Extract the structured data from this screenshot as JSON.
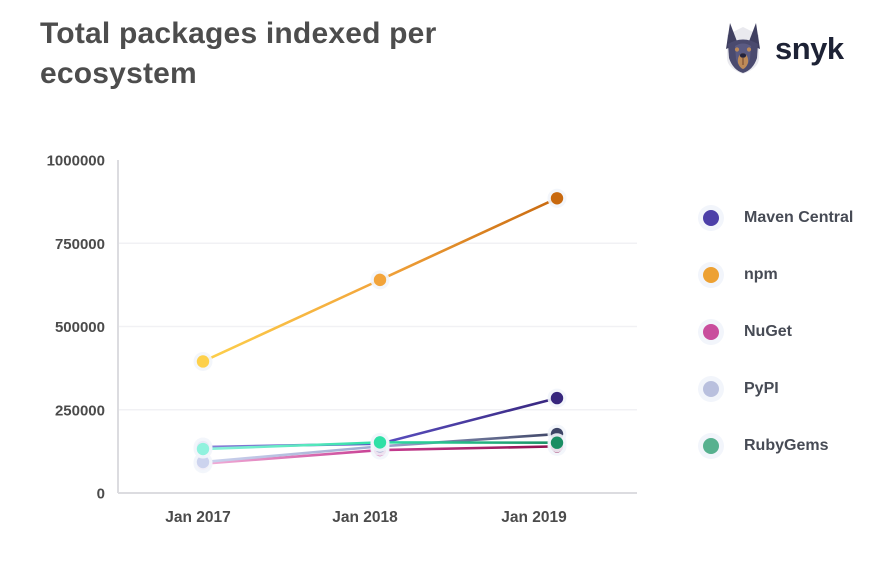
{
  "header": {
    "title": "Total packages indexed per ecosystem"
  },
  "logo": {
    "brand": "snyk",
    "icon": "snyk-doberman-logo"
  },
  "chart_data": {
    "type": "line",
    "title": "Total packages indexed per ecosystem",
    "x": [
      "Jan 2017",
      "Jan 2018",
      "Jan 2019"
    ],
    "ylim": [
      0,
      1000000
    ],
    "yticks": [
      0,
      250000,
      500000,
      750000,
      1000000
    ],
    "ytick_labels": [
      "0",
      "250000",
      "500000",
      "750000",
      "1000000"
    ],
    "grid": true,
    "legend_position": "right",
    "series": [
      {
        "name": "Maven Central",
        "values": [
          138000,
          148000,
          285000
        ],
        "legend_color": "#4c3fa8",
        "gradient": [
          "#8a82d8",
          "#5a4fc0",
          "#37267d"
        ]
      },
      {
        "name": "npm",
        "values": [
          395000,
          640000,
          885000
        ],
        "legend_color": "#eda133",
        "gradient": [
          "#fdd04b",
          "#f2a43b",
          "#c8690f"
        ]
      },
      {
        "name": "NuGet",
        "values": [
          88000,
          129000,
          140000
        ],
        "legend_color": "#c94d9d",
        "gradient": [
          "#f2b1da",
          "#c73d92",
          "#8e0f4c"
        ]
      },
      {
        "name": "PyPI",
        "values": [
          93000,
          140000,
          177000
        ],
        "legend_color": "#b9c0de",
        "gradient": [
          "#ccd3ee",
          "#9fa9d0",
          "#3e4566"
        ]
      },
      {
        "name": "RubyGems",
        "values": [
          132000,
          152000,
          151000
        ],
        "legend_color": "#57b18f",
        "gradient": [
          "#90f2de",
          "#2fe0a6",
          "#1a8e63"
        ]
      }
    ]
  }
}
